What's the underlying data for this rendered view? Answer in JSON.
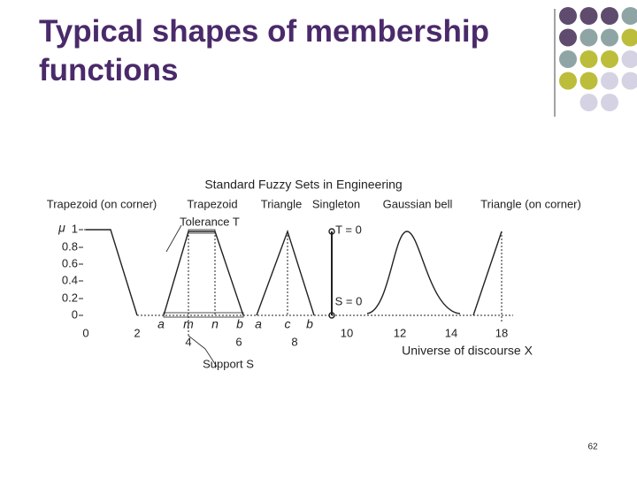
{
  "title": "Typical shapes of membership functions",
  "figure": {
    "title": "Standard Fuzzy Sets in Engineering",
    "shape_labels": [
      "Trapezoid (on corner)",
      "Trapezoid",
      "Triangle",
      "Singleton",
      "Gaussian bell",
      "Triangle (on corner)"
    ],
    "y_axis_label": "μ",
    "y_ticks": [
      "1",
      "0.8",
      "0.6",
      "0.4",
      "0.2",
      "0"
    ],
    "x_ticks": [
      "0",
      "2",
      "4",
      "6",
      "8",
      "10",
      "12",
      "14",
      "18"
    ],
    "point_labels": [
      "a",
      "m",
      "n",
      "b",
      "a",
      "c",
      "b"
    ],
    "annotations": [
      "Tolerance T",
      "Support S",
      "T = 0",
      "S = 0"
    ],
    "x_axis_label": "Universe of discourse X"
  },
  "page_number": "62"
}
